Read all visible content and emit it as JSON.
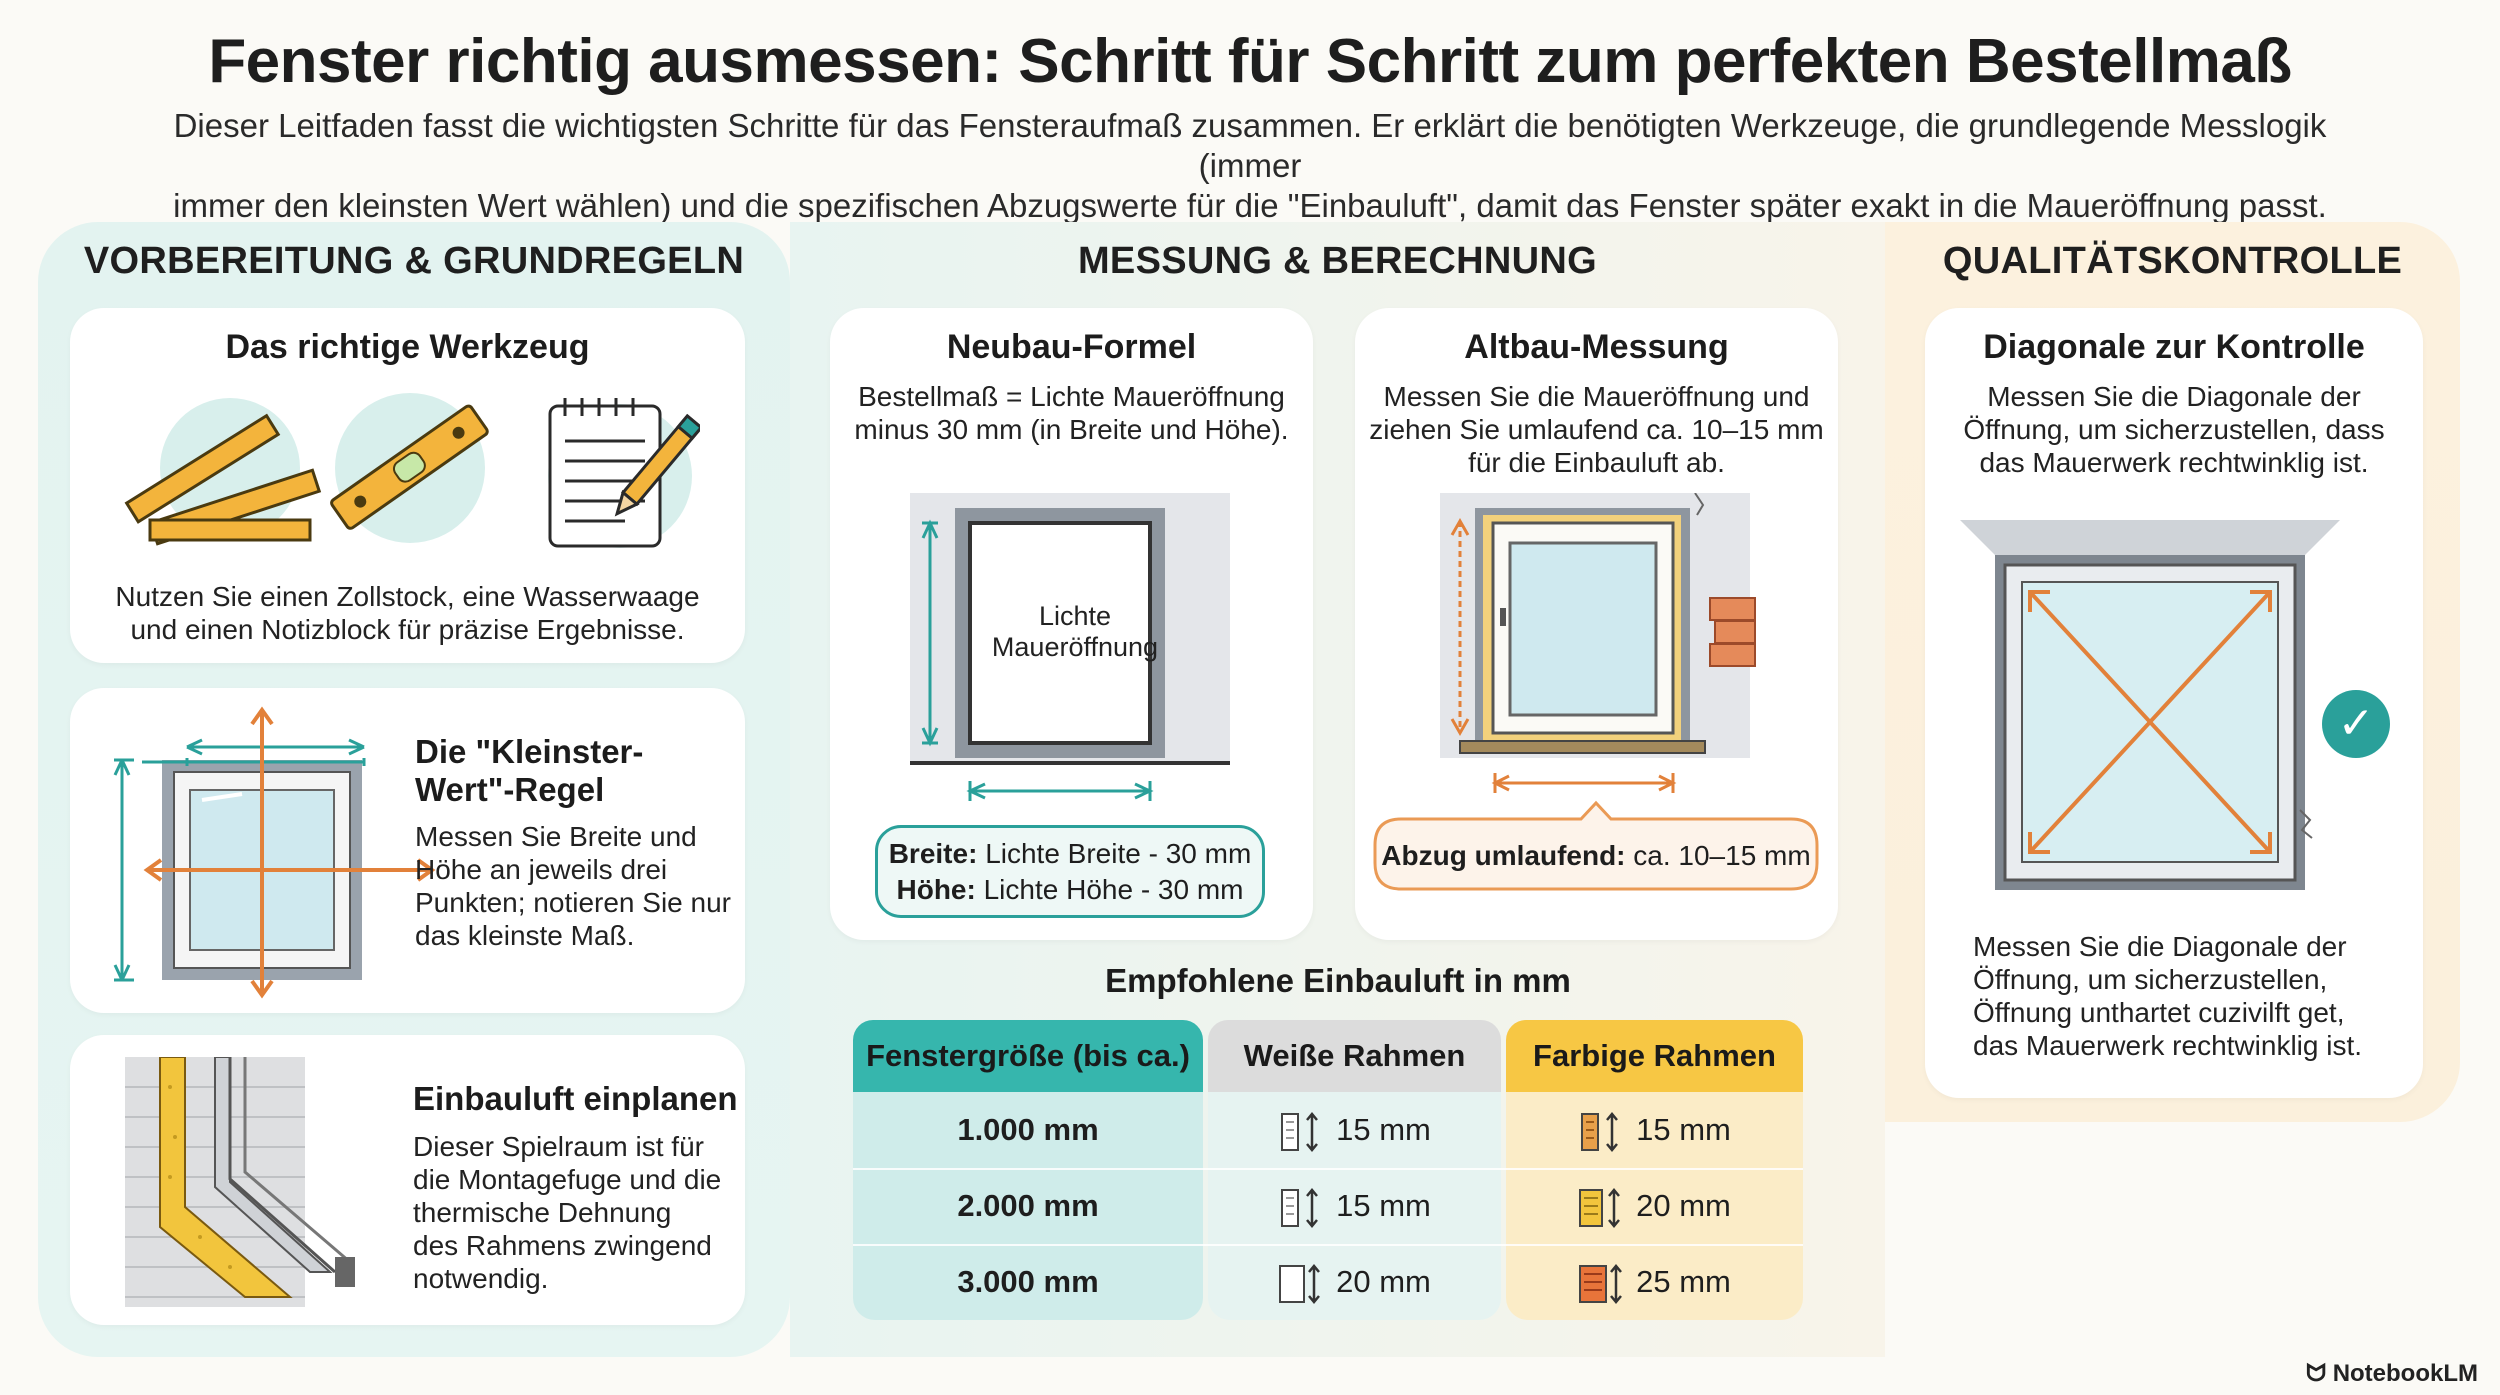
{
  "header": {
    "title": "Fenster richtig ausmessen: Schritt für Schritt zum perfekten Bestellmaß",
    "subtitle_line1": "Dieser Leitfaden fasst die wichtigsten Schritte für das Fensteraufmaß zusammen. Er erklärt die benötigten Werkzeuge, die grundlegende Messlogik (immer",
    "subtitle_line2": "immer den kleinsten Wert wählen) und die spezifischen Abzugswerte für die \"Einbauluft\", damit das Fenster später exakt in die Maueröffnung passt."
  },
  "columns": {
    "left_heading": "VORBEREITUNG & GRUNDREGELN",
    "mid_heading": "MESSUNG & BERECHNUNG",
    "right_heading": "QUALITÄTSKONTROLLE"
  },
  "tools_card": {
    "title": "Das richtige Werkzeug",
    "text_line1": "Nutzen Sie einen Zollstock, eine Wasserwaage",
    "text_line2": "und einen Notizblock für präzise Ergebnisse."
  },
  "rule_card": {
    "title_line1": "Die \"Kleinster-",
    "title_line2": "Wert\"-Regel",
    "text_lines": [
      "Messen Sie Breite und",
      "Höhe an jeweils drei",
      "Punkten; notieren Sie nur",
      "das kleinste Maß."
    ]
  },
  "gap_card": {
    "title": "Einbauluft einplanen",
    "text_lines": [
      "Dieser Spielraum ist für",
      "die Montagefuge und die",
      "thermische Dehnung",
      "des Rahmens zwingend",
      "notwendig."
    ]
  },
  "neubau_card": {
    "title": "Neubau-Formel",
    "text_line1": "Bestellmaß = Lichte Maueröffnung",
    "text_line2": "minus 30 mm (in Breite und Höhe).",
    "diagram_label_line1": "Lichte",
    "diagram_label_line2": "Maueröffnung",
    "formula_width_label": "Breite:",
    "formula_width_value": "Lichte Breite - 30 mm",
    "formula_height_label": "Höhe:",
    "formula_height_value": "Lichte Höhe - 30 mm"
  },
  "altbau_card": {
    "title": "Altbau-Messung",
    "text_lines": [
      "Messen Sie die Maueröffnung und",
      "ziehen Sie umlaufend ca. 10–15 mm",
      "für die Einbauluft ab."
    ],
    "abzug_label": "Abzug umlaufend:",
    "abzug_value": "ca. 10–15 mm"
  },
  "table": {
    "title": "Empfohlene Einbauluft in mm",
    "headers": [
      "Fenstergröße (bis ca.)",
      "Weiße Rahmen",
      "Farbige Rahmen"
    ],
    "rows": [
      {
        "size": "1.000 mm",
        "white": "15 mm",
        "colored": "15 mm"
      },
      {
        "size": "2.000 mm",
        "white": "15 mm",
        "colored": "20 mm"
      },
      {
        "size": "3.000 mm",
        "white": "20 mm",
        "colored": "25 mm"
      }
    ],
    "colors": {
      "size_head": "#36b6ad",
      "white_head": "#dcdcdc",
      "colored_head": "#f7c744"
    }
  },
  "diagonal_card": {
    "title": "Diagonale zur Kontrolle",
    "text_lines": [
      "Messen Sie die Diagonale der",
      "Öffnung, um sicherzustellen, dass",
      "das Mauerwerk rechtwinklig ist."
    ],
    "lower_lines": [
      "Messen Sie die Diagonale der",
      "Öffnung, um sicherzustellen,",
      "Öffnung unthartet cuzivilft get,",
      "das Mauerwerk rechtwinklig ist."
    ]
  },
  "brand": "NotebookLM"
}
